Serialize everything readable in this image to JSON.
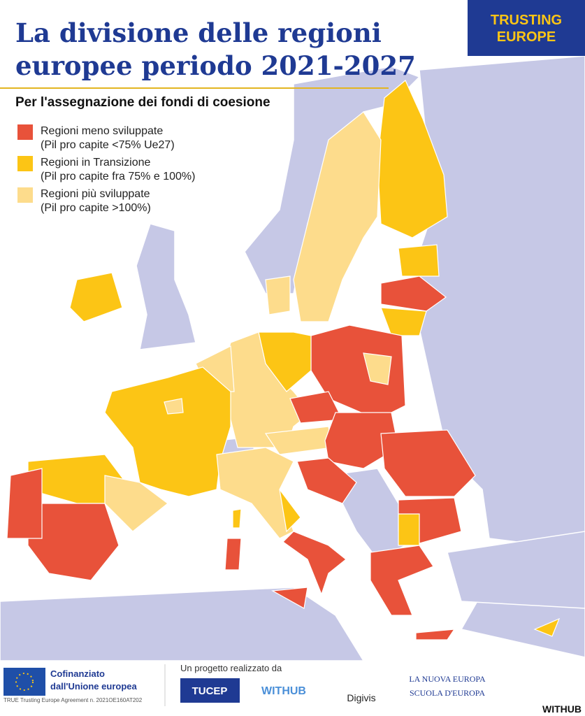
{
  "header": {
    "title_lines": [
      "La divisione delle regioni",
      "europee periodo 2021-2027"
    ],
    "subtitle": "Per l'assegnazione dei fondi di coesione",
    "logo_lines": [
      "TRUSTING",
      "EUROPE"
    ]
  },
  "legend": [
    {
      "name": "Regioni meno sviluppate",
      "note": "(Pil pro capite <75% Ue27)",
      "color": "#e8523a"
    },
    {
      "name": "Regioni in Transizione",
      "note": "(Pil pro capite fra 75% e 100%)",
      "color": "#fcc515"
    },
    {
      "name": "Regioni più sviluppate",
      "note": "(Pil pro capite >100%)",
      "color": "#fddc8c"
    }
  ],
  "footer": {
    "eu_lines": [
      "Cofinanziato",
      "dall'Unione europea"
    ],
    "agreement": "TRUE Trusting Europe Agreement n. 2021OE160AT202",
    "project": "Un progetto realizzato da",
    "partners": [
      "TUCEP",
      "WITHUB",
      "Digivis"
    ],
    "school_lines": [
      "LA NUOVA EUROPA",
      "SCUOLA D'EUROPA"
    ],
    "credit": "WITHUB"
  }
}
